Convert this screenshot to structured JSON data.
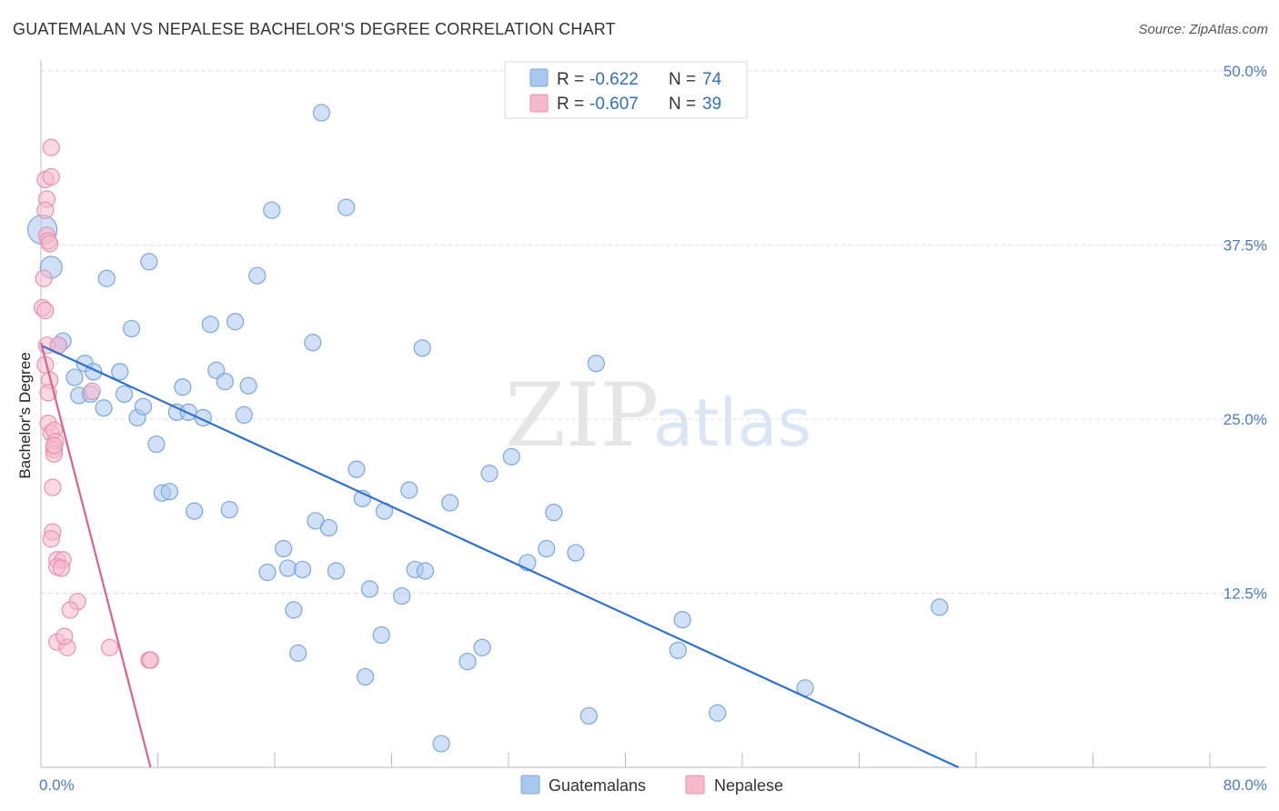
{
  "title": "GUATEMALAN VS NEPALESE BACHELOR'S DEGREE CORRELATION CHART",
  "source": "Source: ZipAtlas.com",
  "watermark": {
    "zip": "ZIP",
    "atlas": "atlas"
  },
  "legend": {
    "series1": {
      "r_label": "R = ",
      "r_value": "-0.622",
      "n_label": "N = ",
      "n_value": "74"
    },
    "series2": {
      "r_label": "R = ",
      "r_value": "-0.607",
      "n_label": "N = ",
      "n_value": "39"
    }
  },
  "bottom_legend": {
    "series1": "Guatemalans",
    "series2": "Nepalese"
  },
  "colors": {
    "blue_fill": "#a9c8f0",
    "blue_stroke": "#7aa6e0",
    "blue_line": "#2d72d2",
    "pink_fill": "#f6b9cc",
    "pink_stroke": "#ec8fae",
    "pink_line": "#e0608a",
    "grid": "#dddddd",
    "tick_text": "#4a7cc7"
  },
  "chart_data": {
    "type": "scatter",
    "title": "GUATEMALAN VS NEPALESE BACHELOR'S DEGREE CORRELATION CHART",
    "xlabel": "",
    "ylabel": "Bachelor's Degree",
    "xlim": [
      0,
      80
    ],
    "ylim": [
      0,
      50
    ],
    "x_tick_labels": [
      "0.0%",
      "80.0%"
    ],
    "y_ticks": [
      12.5,
      25.0,
      37.5,
      50.0
    ],
    "y_tick_labels": [
      "12.5%",
      "25.0%",
      "37.5%",
      "50.0%"
    ],
    "grid": true,
    "series": [
      {
        "name": "Guatemalans",
        "color": "#a9c8f0",
        "trend": {
          "x": [
            0,
            62.8
          ],
          "y": [
            30.3,
            0
          ]
        },
        "points": [
          [
            0.1,
            38.6,
            16
          ],
          [
            0.7,
            35.9,
            12
          ],
          [
            1.5,
            30.6,
            9
          ],
          [
            2.3,
            28.0,
            9
          ],
          [
            2.6,
            26.7,
            9
          ],
          [
            3.0,
            29.0,
            9
          ],
          [
            3.4,
            26.8,
            9
          ],
          [
            4.3,
            25.8,
            9
          ],
          [
            3.6,
            28.4,
            9
          ],
          [
            4.5,
            35.1,
            9
          ],
          [
            5.4,
            28.4,
            9
          ],
          [
            5.7,
            26.8,
            9
          ],
          [
            6.2,
            31.5,
            9
          ],
          [
            6.6,
            25.1,
            9
          ],
          [
            7.0,
            25.9,
            9
          ],
          [
            7.4,
            36.3,
            9
          ],
          [
            7.9,
            23.2,
            9
          ],
          [
            8.3,
            19.7,
            9
          ],
          [
            8.8,
            19.8,
            9
          ],
          [
            9.3,
            25.5,
            9
          ],
          [
            9.7,
            27.3,
            9
          ],
          [
            10.1,
            25.5,
            9
          ],
          [
            10.5,
            18.4,
            9
          ],
          [
            11.1,
            25.1,
            9
          ],
          [
            11.6,
            31.8,
            9
          ],
          [
            12.0,
            28.5,
            9
          ],
          [
            12.6,
            27.7,
            9
          ],
          [
            12.9,
            18.5,
            9
          ],
          [
            13.3,
            32.0,
            9
          ],
          [
            13.9,
            25.3,
            9
          ],
          [
            14.2,
            27.4,
            9
          ],
          [
            14.8,
            35.3,
            9
          ],
          [
            15.5,
            14.0,
            9
          ],
          [
            15.8,
            40.0,
            9
          ],
          [
            16.6,
            15.7,
            9
          ],
          [
            16.9,
            14.3,
            9
          ],
          [
            17.3,
            11.3,
            9
          ],
          [
            17.6,
            8.2,
            9
          ],
          [
            17.9,
            14.2,
            9
          ],
          [
            18.6,
            30.5,
            9
          ],
          [
            18.8,
            17.7,
            9
          ],
          [
            19.2,
            47.0,
            9
          ],
          [
            19.7,
            17.2,
            9
          ],
          [
            20.2,
            14.1,
            9
          ],
          [
            20.9,
            40.2,
            9
          ],
          [
            21.6,
            21.4,
            9
          ],
          [
            22.0,
            19.3,
            9
          ],
          [
            22.2,
            6.5,
            9
          ],
          [
            22.5,
            12.8,
            9
          ],
          [
            23.3,
            9.5,
            9
          ],
          [
            23.5,
            18.4,
            9
          ],
          [
            24.7,
            12.3,
            9
          ],
          [
            25.2,
            19.9,
            9
          ],
          [
            25.6,
            14.2,
            9
          ],
          [
            26.1,
            30.1,
            9
          ],
          [
            26.3,
            14.1,
            9
          ],
          [
            27.4,
            1.7,
            9
          ],
          [
            28.0,
            19.0,
            9
          ],
          [
            29.2,
            7.6,
            9
          ],
          [
            30.2,
            8.6,
            9
          ],
          [
            30.7,
            21.1,
            9
          ],
          [
            32.2,
            22.3,
            9
          ],
          [
            33.3,
            14.7,
            9
          ],
          [
            34.6,
            15.7,
            9
          ],
          [
            35.1,
            18.3,
            9
          ],
          [
            36.6,
            15.4,
            9
          ],
          [
            37.5,
            3.7,
            9
          ],
          [
            38.0,
            29.0,
            9
          ],
          [
            43.6,
            8.4,
            9
          ],
          [
            43.9,
            10.6,
            9
          ],
          [
            46.3,
            3.9,
            9
          ],
          [
            52.3,
            5.7,
            9
          ],
          [
            61.5,
            11.5,
            9
          ],
          [
            1.2,
            30.3,
            9
          ]
        ]
      },
      {
        "name": "Nepalese",
        "color": "#f6b9cc",
        "trend": {
          "x": [
            0,
            7.5
          ],
          "y": [
            30.5,
            0
          ]
        },
        "points": [
          [
            0.3,
            42.2,
            9
          ],
          [
            0.7,
            44.5,
            9
          ],
          [
            0.7,
            42.4,
            9
          ],
          [
            0.4,
            40.8,
            9
          ],
          [
            0.3,
            40.0,
            9
          ],
          [
            0.4,
            38.2,
            9
          ],
          [
            0.5,
            37.8,
            9
          ],
          [
            0.6,
            37.6,
            9
          ],
          [
            0.2,
            35.1,
            9
          ],
          [
            0.1,
            33.0,
            9
          ],
          [
            0.4,
            30.3,
            9
          ],
          [
            1.2,
            30.3,
            9
          ],
          [
            0.3,
            28.9,
            9
          ],
          [
            0.6,
            27.8,
            9
          ],
          [
            0.5,
            26.9,
            9
          ],
          [
            3.5,
            27.0,
            9
          ],
          [
            0.5,
            24.7,
            9
          ],
          [
            0.7,
            24.0,
            9
          ],
          [
            0.9,
            24.2,
            9
          ],
          [
            1.0,
            23.4,
            9
          ],
          [
            0.9,
            22.8,
            9
          ],
          [
            0.9,
            22.5,
            9
          ],
          [
            0.8,
            20.1,
            9
          ],
          [
            0.8,
            16.9,
            9
          ],
          [
            0.7,
            16.4,
            9
          ],
          [
            1.1,
            14.9,
            9
          ],
          [
            1.5,
            14.9,
            9
          ],
          [
            1.1,
            14.4,
            9
          ],
          [
            1.4,
            14.3,
            9
          ],
          [
            2.5,
            11.9,
            9
          ],
          [
            2.0,
            11.3,
            9
          ],
          [
            1.1,
            9.0,
            9
          ],
          [
            1.8,
            8.6,
            9
          ],
          [
            4.7,
            8.6,
            9
          ],
          [
            7.4,
            7.7,
            9
          ],
          [
            7.5,
            7.7,
            9
          ],
          [
            0.3,
            32.8,
            9
          ],
          [
            0.9,
            23.1,
            9
          ],
          [
            1.6,
            9.4,
            9
          ]
        ]
      }
    ]
  }
}
